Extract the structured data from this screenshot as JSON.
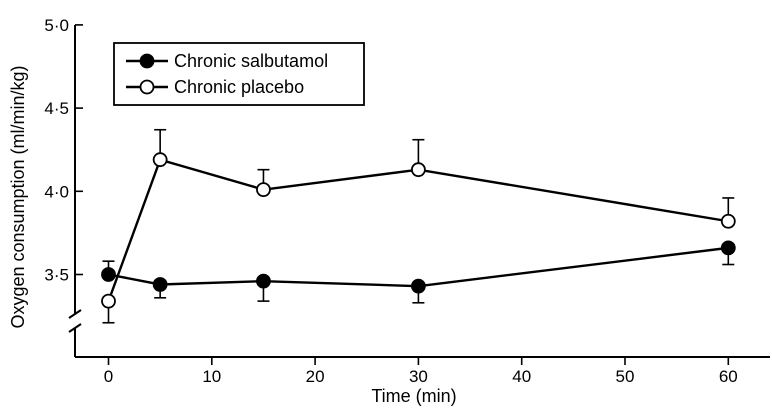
{
  "chart_data": {
    "type": "line",
    "title": "",
    "xlabel": "Time (min)",
    "ylabel": "Oxygen consumption (ml/min/kg)",
    "xlim": [
      -3,
      65
    ],
    "ylim": [
      3.25,
      5.0
    ],
    "y_axis_break": true,
    "x_ticks": [
      0,
      10,
      20,
      30,
      40,
      50,
      60
    ],
    "x_tick_labels": [
      "0",
      "10",
      "20",
      "30",
      "40",
      "50",
      "60"
    ],
    "y_ticks": [
      3.5,
      4.0,
      4.5,
      5.0
    ],
    "y_tick_labels": [
      "3·5",
      "4·0",
      "4·5",
      "5·0"
    ],
    "legend": {
      "position": "top-left",
      "boxed": true
    },
    "series": [
      {
        "name": "Chronic salbutamol",
        "marker": "filled-circle",
        "x": [
          0,
          5,
          15,
          30,
          60
        ],
        "y": [
          3.5,
          3.44,
          3.46,
          3.43,
          3.66
        ],
        "error": [
          0.08,
          0.08,
          0.12,
          0.1,
          0.1
        ],
        "error_dir": [
          1,
          -1,
          -1,
          -1,
          -1
        ]
      },
      {
        "name": "Chronic placebo",
        "marker": "open-circle",
        "x": [
          0,
          5,
          15,
          30,
          60
        ],
        "y": [
          3.34,
          4.19,
          4.01,
          4.13,
          3.82
        ],
        "error": [
          0.13,
          0.18,
          0.12,
          0.18,
          0.14
        ],
        "error_dir": [
          -1,
          1,
          1,
          1,
          1
        ]
      }
    ]
  }
}
